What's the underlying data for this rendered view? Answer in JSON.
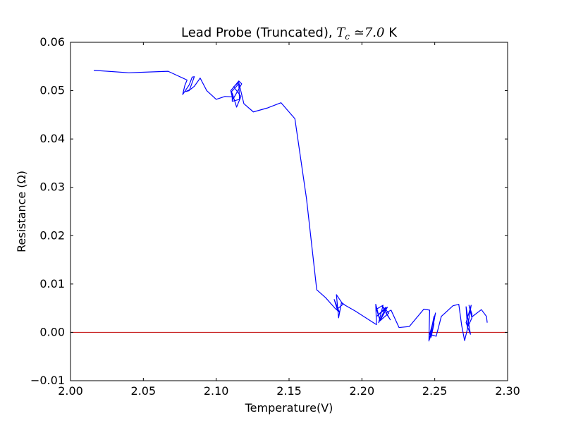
{
  "chart_data": {
    "type": "line",
    "title_parts": {
      "prefix": "Lead Probe (Truncated), ",
      "math_symbol": "T",
      "math_subscript": "c",
      "math_rel": " ≃7.0",
      "suffix": " K"
    },
    "xlabel": "Temperature(V)",
    "ylabel": "Resistance (Ω)",
    "xlim": [
      2.0,
      2.3
    ],
    "ylim": [
      -0.01,
      0.06
    ],
    "xticks": [
      2.0,
      2.05,
      2.1,
      2.15,
      2.2,
      2.25,
      2.3
    ],
    "xtick_labels": [
      "2.00",
      "2.05",
      "2.10",
      "2.15",
      "2.20",
      "2.25",
      "2.30"
    ],
    "yticks": [
      -0.01,
      0.0,
      0.01,
      0.02,
      0.03,
      0.04,
      0.05,
      0.06
    ],
    "ytick_labels": [
      "−0.01",
      "0.00",
      "0.01",
      "0.02",
      "0.03",
      "0.04",
      "0.05",
      "0.06"
    ],
    "grid": false,
    "legend": "none",
    "series": [
      {
        "color": "#0000ff",
        "x": [
          2.016,
          2.04,
          2.067,
          2.08,
          2.0785,
          2.077,
          2.0815,
          2.0835,
          2.085,
          2.0815,
          2.079,
          2.0825,
          2.085,
          2.089,
          2.0935,
          2.1,
          2.106,
          2.111,
          2.11,
          2.1155,
          2.1175,
          2.1115,
          2.1105,
          2.1155,
          2.116,
          2.111,
          2.111,
          2.114,
          2.117,
          2.112,
          2.1155,
          2.119,
          2.1255,
          2.135,
          2.1445,
          2.154,
          2.162,
          2.169,
          2.175,
          2.1815,
          2.1845,
          2.181,
          2.183,
          2.187,
          2.1825,
          2.184,
          2.186,
          2.1885,
          2.1955,
          2.21,
          2.2095,
          2.2125,
          2.21,
          2.2145,
          2.2115,
          2.2165,
          2.2105,
          2.2175,
          2.2125,
          2.2185,
          2.214,
          2.2195,
          2.2165,
          2.22,
          2.2255,
          2.2325,
          2.2425,
          2.2465,
          2.246,
          2.2495,
          2.2465,
          2.2495,
          2.2475,
          2.2505,
          2.2465,
          2.251,
          2.2545,
          2.2625,
          2.2665,
          2.2685,
          2.2705,
          2.2725,
          2.2715,
          2.2745,
          2.2715,
          2.275,
          2.2725,
          2.2755,
          2.2735,
          2.2755,
          2.2755,
          2.282,
          2.2855,
          2.286
        ],
        "y": [
          0.0542,
          0.0537,
          0.054,
          0.0522,
          0.0511,
          0.0492,
          0.0512,
          0.0528,
          0.0529,
          0.05,
          0.0498,
          0.0503,
          0.0509,
          0.0526,
          0.05,
          0.0482,
          0.0488,
          0.0487,
          0.05,
          0.052,
          0.0514,
          0.0482,
          0.0498,
          0.0514,
          0.0482,
          0.0478,
          0.0495,
          0.0466,
          0.0488,
          0.0508,
          0.0517,
          0.0473,
          0.0456,
          0.0464,
          0.0475,
          0.0442,
          0.0276,
          0.0088,
          0.0072,
          0.005,
          0.0042,
          0.0068,
          0.0048,
          0.0058,
          0.0078,
          0.003,
          0.0062,
          0.0056,
          0.0044,
          0.0016,
          0.0058,
          0.0024,
          0.0048,
          0.0056,
          0.002,
          0.0052,
          0.0034,
          0.0052,
          0.0024,
          0.004,
          0.0054,
          0.0026,
          0.004,
          0.0046,
          0.001,
          0.0012,
          0.0048,
          0.0046,
          -0.0018,
          0.0033,
          -0.0014,
          0.0018,
          -0.001,
          0.004,
          -0.0004,
          -0.0008,
          0.0033,
          0.0055,
          0.0058,
          0.0014,
          -0.0017,
          0.0008,
          0.0053,
          -0.0004,
          0.002,
          0.0056,
          0.001,
          0.003,
          0.0056,
          0.0038,
          0.0032,
          0.0047,
          0.0033,
          0.002
        ]
      }
    ],
    "reference_line": {
      "y": 0.0,
      "color": "#bf0000"
    }
  }
}
